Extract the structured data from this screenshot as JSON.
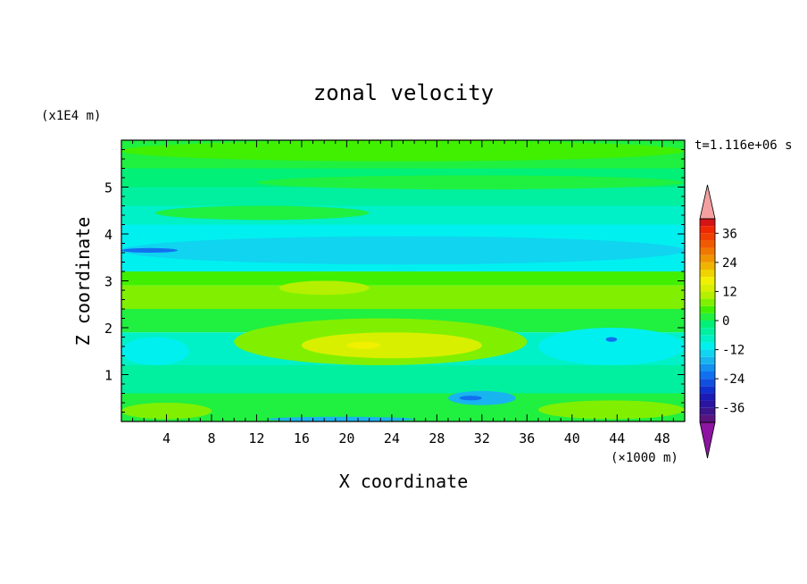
{
  "chart_data": {
    "type": "heatmap",
    "title": "zonal velocity",
    "xlabel": "X coordinate",
    "ylabel": "Z coordinate",
    "x_unit": "(×1000 m)",
    "y_unit": "(x1E4 m)",
    "time_label": "t=1.116e+06 s",
    "xlim": [
      0,
      50
    ],
    "ylim": [
      0,
      6
    ],
    "x_ticks": [
      4,
      8,
      12,
      16,
      20,
      24,
      28,
      32,
      36,
      40,
      44,
      48
    ],
    "y_ticks": [
      1,
      2,
      3,
      4,
      5
    ],
    "colorbar": {
      "levels": [
        -42,
        -39,
        -36,
        -33,
        -30,
        -27,
        -24,
        -21,
        -18,
        -15,
        -12,
        -9,
        -6,
        -3,
        0,
        3,
        6,
        9,
        12,
        15,
        18,
        21,
        24,
        27,
        30,
        33,
        36,
        39,
        42
      ],
      "tick_labels": [
        36,
        24,
        12,
        0,
        -12,
        -24,
        -36
      ],
      "colors": [
        "#5a1480",
        "#3c148c",
        "#2a14a0",
        "#1a1ab4",
        "#1030d0",
        "#1050e0",
        "#1070f0",
        "#1490f0",
        "#18b4f0",
        "#10d4f0",
        "#00f0f0",
        "#00f0c8",
        "#00f0a0",
        "#00f078",
        "#20f040",
        "#40f000",
        "#80f000",
        "#b4f000",
        "#d8f000",
        "#f0f000",
        "#f0d400",
        "#f0b400",
        "#f09400",
        "#f07800",
        "#f05a00",
        "#f04000",
        "#f02800",
        "#d41414"
      ],
      "over_color": "#f4a0a0",
      "under_color": "#8c14a0"
    },
    "bands": [
      {
        "z": [
          5.4,
          6.0
        ],
        "value": 2
      },
      {
        "z": [
          5.0,
          5.4
        ],
        "value": -3
      },
      {
        "z": [
          4.6,
          5.0
        ],
        "value": -4
      },
      {
        "z": [
          4.2,
          4.6
        ],
        "value": -7
      },
      {
        "z": [
          3.2,
          4.2
        ],
        "value": -11
      },
      {
        "z": [
          2.9,
          3.2
        ],
        "value": 3
      },
      {
        "z": [
          2.4,
          2.9
        ],
        "value": 6
      },
      {
        "z": [
          1.9,
          2.4
        ],
        "value": 1
      },
      {
        "z": [
          1.2,
          1.9
        ],
        "value": -8
      },
      {
        "z": [
          0.6,
          1.2
        ],
        "value": -4
      },
      {
        "z": [
          0.0,
          0.6
        ],
        "value": 2
      }
    ],
    "features": [
      {
        "x": [
          0,
          50
        ],
        "z": [
          5.55,
          6.0
        ],
        "value": 3
      },
      {
        "x": [
          12,
          50
        ],
        "z": [
          4.95,
          5.25
        ],
        "value": 2
      },
      {
        "x": [
          3,
          22
        ],
        "z": [
          4.3,
          4.6
        ],
        "value": 0
      },
      {
        "x": [
          0,
          50
        ],
        "z": [
          3.35,
          3.95
        ],
        "value": -13
      },
      {
        "x": [
          0,
          5
        ],
        "z": [
          3.6,
          3.7
        ],
        "value": -22
      },
      {
        "x": [
          14,
          22
        ],
        "z": [
          2.7,
          3.0
        ],
        "value": 9
      },
      {
        "x": [
          10,
          36
        ],
        "z": [
          1.2,
          2.2
        ],
        "value": 7
      },
      {
        "x": [
          16,
          32
        ],
        "z": [
          1.35,
          1.9
        ],
        "value": 12
      },
      {
        "x": [
          20,
          23
        ],
        "z": [
          1.55,
          1.7
        ],
        "value": 16
      },
      {
        "x": [
          37,
          50
        ],
        "z": [
          1.2,
          2.0
        ],
        "value": -12
      },
      {
        "x": [
          0,
          6
        ],
        "z": [
          1.2,
          1.8
        ],
        "value": -11
      },
      {
        "x": [
          29,
          35
        ],
        "z": [
          0.35,
          0.65
        ],
        "value": -17
      },
      {
        "x": [
          30,
          32
        ],
        "z": [
          0.45,
          0.55
        ],
        "value": -24
      },
      {
        "x": [
          13,
          26
        ],
        "z": [
          0.0,
          0.1
        ],
        "value": -18
      },
      {
        "x": [
          0,
          8
        ],
        "z": [
          0.05,
          0.4
        ],
        "value": 8
      },
      {
        "x": [
          37,
          50
        ],
        "z": [
          0.05,
          0.45
        ],
        "value": 6
      },
      {
        "x": [
          43,
          44
        ],
        "z": [
          1.7,
          1.8
        ],
        "value": -22
      }
    ]
  }
}
